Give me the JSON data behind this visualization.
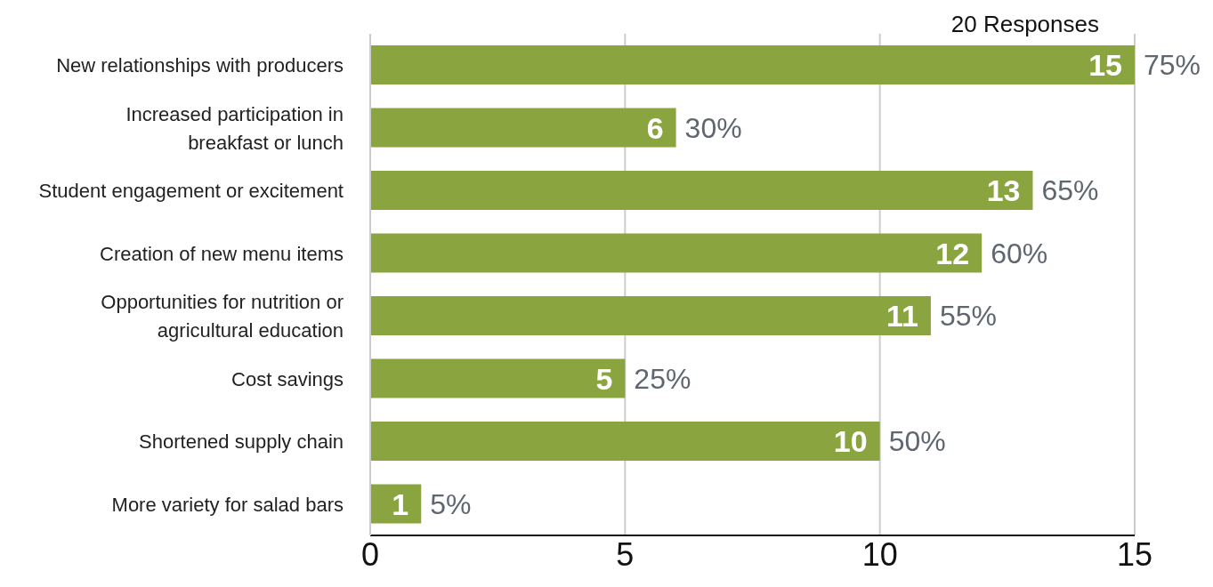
{
  "chart_data": {
    "type": "bar",
    "orientation": "horizontal",
    "categories": [
      "New relationships with producers",
      "Increased participation in breakfast or lunch",
      "Student engagement or excitement",
      "Creation of new menu items",
      "Opportunities for nutrition or agricultural education",
      "Cost savings",
      "Shortened supply chain",
      "More variety for salad bars"
    ],
    "values": [
      15,
      6,
      13,
      12,
      11,
      5,
      10,
      1
    ],
    "data_labels": true,
    "color": "#8aa43f",
    "xlim": [
      0,
      15
    ],
    "xticks": [
      0,
      5,
      10,
      15
    ],
    "grid": "x",
    "annotations": [
      "20 Responses",
      {
        "text": "75%",
        "x": 15,
        "y": "New relationships with producers"
      },
      {
        "text": "30%",
        "x": 6,
        "y": "Increased participation in breakfast or lunch"
      },
      {
        "text": "65%",
        "x": 13,
        "y": "Student engagement or excitement"
      },
      {
        "text": "60%",
        "x": 12,
        "y": "Creation of new menu items"
      },
      {
        "text": "55%",
        "x": 11,
        "y": "Opportunities for nutrition or agricultural education"
      },
      {
        "text": "25%",
        "x": 5,
        "y": "Cost savings"
      },
      {
        "text": "50%",
        "x": 10,
        "y": "Shortened supply chain"
      },
      {
        "text": "5%",
        "x": 1,
        "y": "More variety for salad bars"
      }
    ]
  }
}
